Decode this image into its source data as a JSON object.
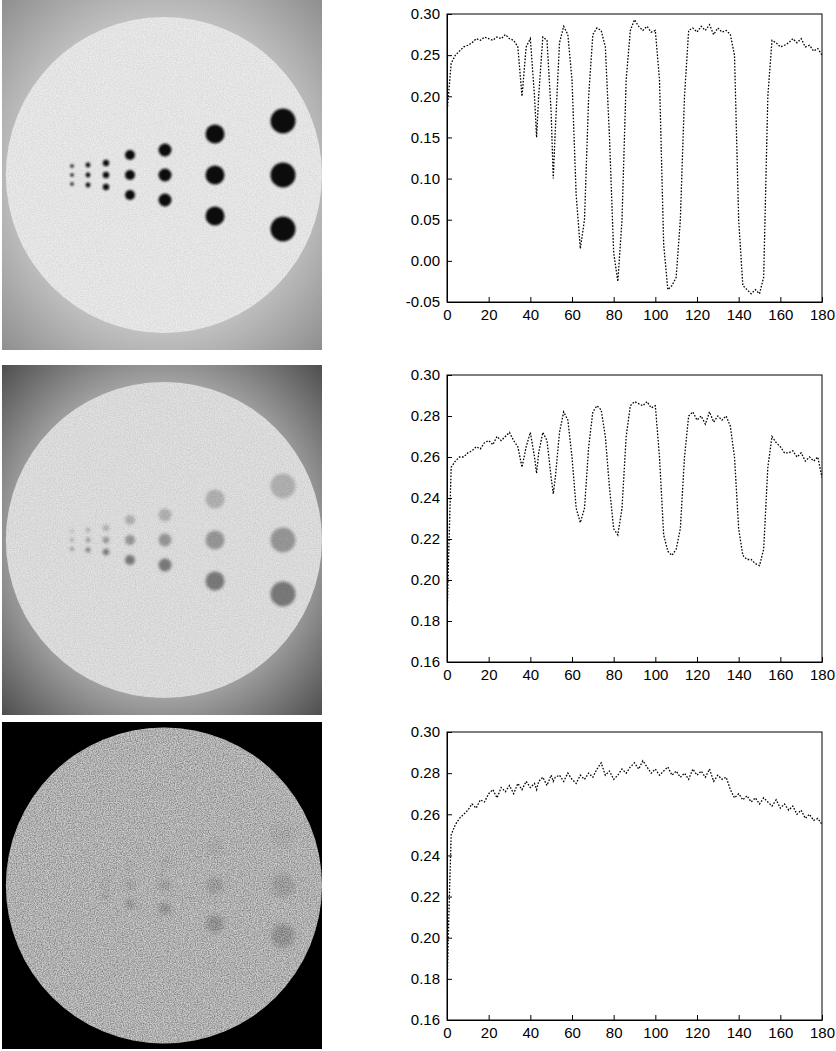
{
  "chart_data": [
    {
      "type": "line",
      "x": [
        0,
        1,
        2,
        4,
        6,
        8,
        10,
        12,
        14,
        16,
        18,
        20,
        22,
        24,
        26,
        28,
        30,
        32,
        34,
        36,
        38,
        40,
        42,
        43,
        44,
        46,
        48,
        50,
        51,
        52,
        54,
        56,
        58,
        60,
        62,
        64,
        66,
        68,
        70,
        72,
        74,
        76,
        78,
        80,
        82,
        84,
        86,
        88,
        90,
        92,
        94,
        96,
        98,
        100,
        102,
        104,
        106,
        108,
        110,
        112,
        114,
        116,
        118,
        120,
        122,
        124,
        126,
        128,
        130,
        132,
        134,
        136,
        138,
        140,
        142,
        144,
        146,
        148,
        150,
        152,
        154,
        156,
        158,
        160,
        162,
        164,
        166,
        168,
        170,
        172,
        174,
        176,
        178,
        180
      ],
      "series": [
        {
          "color": "#000000",
          "line_style": "dotted",
          "values": [
            0.18,
            0.21,
            0.24,
            0.25,
            0.255,
            0.26,
            0.262,
            0.265,
            0.27,
            0.268,
            0.272,
            0.27,
            0.268,
            0.272,
            0.27,
            0.275,
            0.27,
            0.268,
            0.26,
            0.2,
            0.26,
            0.27,
            0.2,
            0.15,
            0.2,
            0.272,
            0.268,
            0.18,
            0.1,
            0.16,
            0.265,
            0.285,
            0.275,
            0.22,
            0.08,
            0.015,
            0.05,
            0.2,
            0.275,
            0.283,
            0.28,
            0.26,
            0.15,
            0.01,
            -0.025,
            0.05,
            0.22,
            0.28,
            0.293,
            0.285,
            0.28,
            0.285,
            0.278,
            0.28,
            0.22,
            0.02,
            -0.035,
            -0.03,
            -0.02,
            0.05,
            0.2,
            0.28,
            0.283,
            0.278,
            0.285,
            0.28,
            0.287,
            0.275,
            0.283,
            0.278,
            0.28,
            0.275,
            0.25,
            0.05,
            -0.03,
            -0.035,
            -0.04,
            -0.035,
            -0.04,
            -0.02,
            0.2,
            0.268,
            0.265,
            0.26,
            0.262,
            0.265,
            0.27,
            0.265,
            0.27,
            0.26,
            0.262,
            0.255,
            0.258,
            0.25
          ]
        }
      ],
      "xlim": [
        0,
        180
      ],
      "xticks": [
        0,
        20,
        40,
        60,
        80,
        100,
        120,
        140,
        160,
        180
      ],
      "ylim": [
        -0.05,
        0.3
      ],
      "yticks": [
        -0.05,
        {
          "value": 0,
          "label": "0.00"
        },
        0.05,
        {
          "value": 0.1,
          "label": "0.10"
        },
        0.15,
        {
          "value": 0.2,
          "label": "0.20"
        },
        0.25,
        {
          "value": 0.3,
          "label": "0.30"
        }
      ]
    },
    {
      "type": "line",
      "x": [
        0,
        1,
        2,
        4,
        6,
        8,
        10,
        12,
        14,
        16,
        18,
        20,
        22,
        24,
        26,
        28,
        30,
        32,
        34,
        36,
        38,
        40,
        42,
        43,
        44,
        46,
        48,
        50,
        51,
        52,
        54,
        56,
        58,
        60,
        62,
        64,
        66,
        68,
        70,
        72,
        74,
        76,
        78,
        80,
        82,
        84,
        86,
        88,
        90,
        92,
        94,
        96,
        98,
        100,
        102,
        104,
        106,
        108,
        110,
        112,
        114,
        116,
        118,
        120,
        122,
        124,
        126,
        128,
        130,
        132,
        134,
        136,
        138,
        140,
        142,
        144,
        146,
        148,
        150,
        152,
        154,
        156,
        158,
        160,
        162,
        164,
        166,
        168,
        170,
        172,
        174,
        176,
        178,
        180
      ],
      "series": [
        {
          "color": "#000000",
          "line_style": "dotted",
          "values": [
            0.18,
            0.22,
            0.255,
            0.258,
            0.26,
            0.26,
            0.262,
            0.263,
            0.265,
            0.264,
            0.267,
            0.268,
            0.266,
            0.27,
            0.268,
            0.27,
            0.272,
            0.268,
            0.265,
            0.255,
            0.265,
            0.272,
            0.26,
            0.252,
            0.262,
            0.272,
            0.268,
            0.25,
            0.242,
            0.25,
            0.272,
            0.282,
            0.278,
            0.26,
            0.235,
            0.228,
            0.235,
            0.265,
            0.282,
            0.285,
            0.283,
            0.27,
            0.245,
            0.225,
            0.222,
            0.235,
            0.27,
            0.285,
            0.287,
            0.286,
            0.285,
            0.287,
            0.284,
            0.285,
            0.26,
            0.222,
            0.214,
            0.212,
            0.215,
            0.225,
            0.26,
            0.28,
            0.282,
            0.278,
            0.28,
            0.276,
            0.282,
            0.277,
            0.28,
            0.278,
            0.28,
            0.275,
            0.26,
            0.225,
            0.212,
            0.21,
            0.21,
            0.208,
            0.207,
            0.215,
            0.255,
            0.27,
            0.267,
            0.265,
            0.262,
            0.262,
            0.263,
            0.26,
            0.262,
            0.258,
            0.26,
            0.258,
            0.26,
            0.25
          ]
        }
      ],
      "xlim": [
        0,
        180
      ],
      "xticks": [
        0,
        20,
        40,
        60,
        80,
        100,
        120,
        140,
        160,
        180
      ],
      "ylim": [
        0.16,
        0.3
      ],
      "yticks": [
        0.16,
        0.18,
        {
          "value": 0.2,
          "label": "0.20"
        },
        0.22,
        0.24,
        0.26,
        0.28,
        {
          "value": 0.3,
          "label": "0.30"
        }
      ]
    },
    {
      "type": "line",
      "x": [
        0,
        1,
        2,
        4,
        6,
        8,
        10,
        12,
        14,
        16,
        18,
        20,
        22,
        24,
        26,
        28,
        30,
        32,
        34,
        36,
        38,
        40,
        42,
        43,
        44,
        46,
        48,
        50,
        51,
        52,
        54,
        56,
        58,
        60,
        62,
        64,
        66,
        68,
        70,
        72,
        74,
        76,
        78,
        80,
        82,
        84,
        86,
        88,
        90,
        92,
        94,
        96,
        98,
        100,
        102,
        104,
        106,
        108,
        110,
        112,
        114,
        116,
        118,
        120,
        122,
        124,
        126,
        128,
        130,
        132,
        134,
        136,
        138,
        140,
        142,
        144,
        146,
        148,
        150,
        152,
        154,
        156,
        158,
        160,
        162,
        164,
        166,
        168,
        170,
        172,
        174,
        176,
        178,
        180
      ],
      "series": [
        {
          "color": "#000000",
          "line_style": "dotted",
          "values": [
            0.175,
            0.215,
            0.25,
            0.255,
            0.258,
            0.26,
            0.262,
            0.265,
            0.263,
            0.267,
            0.266,
            0.27,
            0.272,
            0.268,
            0.273,
            0.271,
            0.274,
            0.27,
            0.275,
            0.272,
            0.276,
            0.273,
            0.275,
            0.272,
            0.276,
            0.278,
            0.274,
            0.279,
            0.276,
            0.278,
            0.279,
            0.276,
            0.28,
            0.277,
            0.275,
            0.279,
            0.277,
            0.28,
            0.278,
            0.282,
            0.285,
            0.279,
            0.281,
            0.277,
            0.279,
            0.282,
            0.28,
            0.283,
            0.285,
            0.282,
            0.286,
            0.283,
            0.28,
            0.282,
            0.279,
            0.281,
            0.283,
            0.279,
            0.281,
            0.278,
            0.28,
            0.277,
            0.282,
            0.279,
            0.281,
            0.278,
            0.282,
            0.276,
            0.279,
            0.277,
            0.278,
            0.272,
            0.268,
            0.27,
            0.267,
            0.269,
            0.266,
            0.268,
            0.265,
            0.268,
            0.266,
            0.264,
            0.267,
            0.263,
            0.265,
            0.262,
            0.264,
            0.26,
            0.262,
            0.258,
            0.26,
            0.257,
            0.258,
            0.255
          ]
        }
      ],
      "xlim": [
        0,
        180
      ],
      "xticks": [
        0,
        20,
        40,
        60,
        80,
        100,
        120,
        140,
        160,
        180
      ],
      "ylim": [
        0.16,
        0.3
      ],
      "yticks": [
        0.16,
        0.18,
        {
          "value": 0.2,
          "label": "0.20"
        },
        0.22,
        0.24,
        0.26,
        0.28,
        {
          "value": 0.3,
          "label": "0.30"
        }
      ]
    }
  ]
}
